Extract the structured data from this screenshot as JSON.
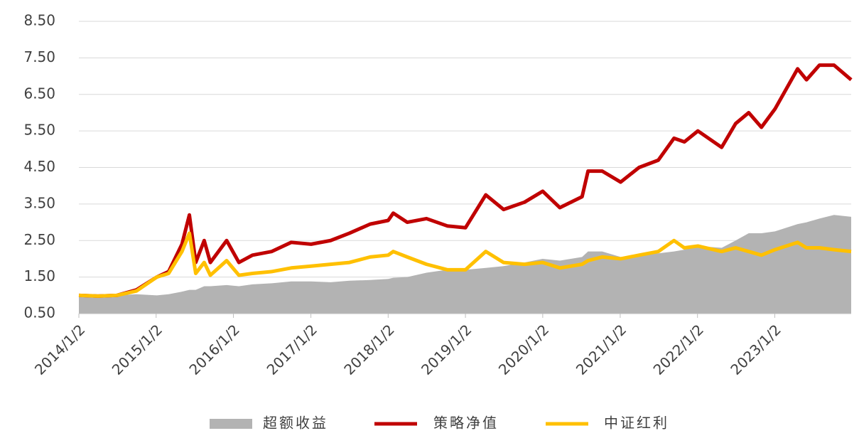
{
  "chart_data": {
    "type": "line",
    "x": [
      "2014/1/2",
      "2014/4/1",
      "2014/7/1",
      "2014/10/1",
      "2015/1/5",
      "2015/3/2",
      "2015/5/4",
      "2015/6/8",
      "2015/7/8",
      "2015/8/17",
      "2015/9/15",
      "2015/12/1",
      "2016/1/28",
      "2016/4/1",
      "2016/7/1",
      "2016/10/1",
      "2017/1/3",
      "2017/4/5",
      "2017/7/3",
      "2017/10/9",
      "2018/1/2",
      "2018/1/26",
      "2018/4/2",
      "2018/7/2",
      "2018/10/8",
      "2019/1/2",
      "2019/4/8",
      "2019/7/1",
      "2019/10/8",
      "2020/1/2",
      "2020/3/23",
      "2020/7/6",
      "2020/8/3",
      "2020/10/9",
      "2021/1/4",
      "2021/4/1",
      "2021/7/1",
      "2021/9/13",
      "2021/11/1",
      "2022/1/4",
      "2022/4/26",
      "2022/7/1",
      "2022/9/1",
      "2022/10/31",
      "2023/1/3",
      "2023/4/20",
      "2023/6/1",
      "2023/8/1",
      "2023/10/9",
      "2023/12/29"
    ],
    "series": [
      {
        "name": "超额收益",
        "kind": "area",
        "color": "#b3b3b3",
        "values": [
          1.0,
          1.0,
          1.0,
          1.03,
          1.0,
          1.03,
          1.1,
          1.15,
          1.15,
          1.25,
          1.25,
          1.28,
          1.25,
          1.3,
          1.33,
          1.38,
          1.38,
          1.36,
          1.4,
          1.42,
          1.45,
          1.48,
          1.5,
          1.62,
          1.7,
          1.7,
          1.75,
          1.8,
          1.9,
          2.0,
          1.95,
          2.05,
          2.2,
          2.2,
          2.05,
          2.1,
          2.15,
          2.2,
          2.25,
          2.35,
          2.3,
          2.5,
          2.7,
          2.7,
          2.75,
          2.95,
          3.0,
          3.1,
          3.2,
          3.15
        ]
      },
      {
        "name": "策略净值",
        "kind": "line",
        "color": "#c00000",
        "values": [
          1.0,
          0.98,
          1.0,
          1.15,
          1.5,
          1.65,
          2.4,
          3.2,
          1.9,
          2.5,
          1.9,
          2.5,
          1.9,
          2.1,
          2.2,
          2.45,
          2.4,
          2.5,
          2.7,
          2.95,
          3.05,
          3.25,
          3.0,
          3.1,
          2.9,
          2.85,
          3.75,
          3.35,
          3.55,
          3.85,
          3.4,
          3.7,
          4.4,
          4.4,
          4.1,
          4.5,
          4.7,
          5.3,
          5.2,
          5.5,
          5.05,
          5.7,
          6.0,
          5.6,
          6.1,
          7.2,
          6.9,
          7.3,
          7.3,
          6.9
        ]
      },
      {
        "name": "中证红利",
        "kind": "line",
        "color": "#ffc000",
        "values": [
          1.0,
          0.98,
          1.0,
          1.12,
          1.5,
          1.6,
          2.2,
          2.7,
          1.6,
          1.9,
          1.55,
          1.95,
          1.55,
          1.6,
          1.65,
          1.75,
          1.8,
          1.85,
          1.9,
          2.05,
          2.1,
          2.2,
          2.05,
          1.85,
          1.7,
          1.7,
          2.2,
          1.9,
          1.85,
          1.9,
          1.75,
          1.85,
          1.95,
          2.05,
          2.0,
          2.1,
          2.2,
          2.5,
          2.3,
          2.35,
          2.2,
          2.3,
          2.2,
          2.1,
          2.25,
          2.45,
          2.3,
          2.3,
          2.25,
          2.2
        ]
      }
    ],
    "xlim": [
      "2014/1/2",
      "2023/12/29"
    ],
    "xticks": [
      "2014/1/2",
      "2015/1/2",
      "2016/1/2",
      "2017/1/2",
      "2018/1/2",
      "2019/1/2",
      "2020/1/2",
      "2021/1/2",
      "2022/1/2",
      "2023/1/2"
    ],
    "ylim": [
      0.5,
      8.5
    ],
    "yticks": [
      {
        "value": 0.5,
        "label": "0.50"
      },
      {
        "value": 1.5,
        "label": "1.50"
      },
      {
        "value": 2.5,
        "label": "2.50"
      },
      {
        "value": 3.5,
        "label": "3.50"
      },
      {
        "value": 4.5,
        "label": "4.50"
      },
      {
        "value": 5.5,
        "label": "5.50"
      },
      {
        "value": 6.5,
        "label": "6.50"
      },
      {
        "value": 7.5,
        "label": "7.50"
      },
      {
        "value": 8.5,
        "label": "8.50"
      }
    ],
    "grid": true
  }
}
